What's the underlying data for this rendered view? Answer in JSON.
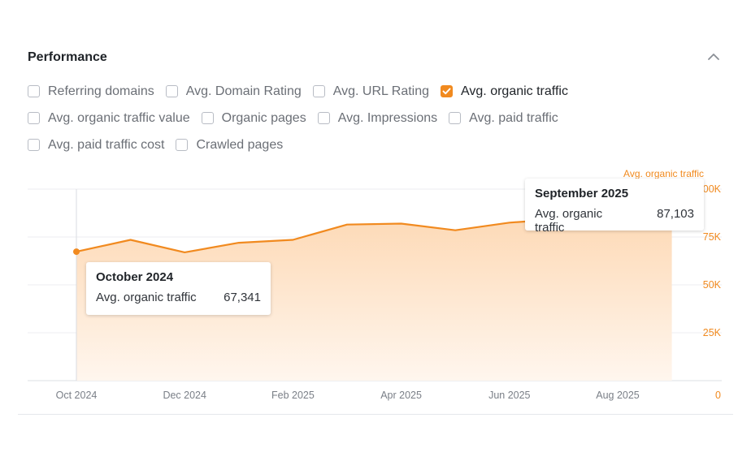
{
  "panel": {
    "title": "Performance"
  },
  "filters": [
    {
      "label": "Referring domains",
      "checked": false
    },
    {
      "label": "Avg. Domain Rating",
      "checked": false
    },
    {
      "label": "Avg. URL Rating",
      "checked": false
    },
    {
      "label": "Avg. organic traffic",
      "checked": true
    },
    {
      "label": "Avg. organic traffic value",
      "checked": false
    },
    {
      "label": "Organic pages",
      "checked": false
    },
    {
      "label": "Avg. Impressions",
      "checked": false
    },
    {
      "label": "Avg. paid traffic",
      "checked": false
    },
    {
      "label": "Avg. paid traffic cost",
      "checked": false
    },
    {
      "label": "Crawled pages",
      "checked": false
    }
  ],
  "colors": {
    "accent": "#f18a1f",
    "fill_top": "#fdd9b5",
    "fill_bottom": "#fff6ee"
  },
  "icons": {
    "collapse": "chevron-up-icon",
    "checkmark": "check-icon"
  },
  "chart_data": {
    "type": "area",
    "series": [
      {
        "name": "Avg. organic traffic",
        "values": [
          67341,
          73500,
          67000,
          72000,
          73500,
          81500,
          82000,
          78500,
          82500,
          84500,
          85500,
          87103
        ]
      }
    ],
    "x": [
      "2024-10",
      "2024-11",
      "2024-12",
      "2025-01",
      "2025-02",
      "2025-03",
      "2025-04",
      "2025-05",
      "2025-06",
      "2025-07",
      "2025-08",
      "2025-09"
    ],
    "x_tick_labels": [
      "Oct 2024",
      "Dec 2024",
      "Feb 2025",
      "Apr 2025",
      "Jun 2025",
      "Aug 2025"
    ],
    "y_tick_labels": [
      "0",
      "25K",
      "50K",
      "75K",
      "100K"
    ],
    "ylim": [
      0,
      100000
    ],
    "grid": true,
    "legend": "top-right",
    "tooltips": [
      {
        "title": "October 2024",
        "label": "Avg. organic traffic",
        "value": "67,341"
      },
      {
        "title": "September 2025",
        "label": "Avg. organic traffic",
        "value": "87,103"
      }
    ]
  }
}
